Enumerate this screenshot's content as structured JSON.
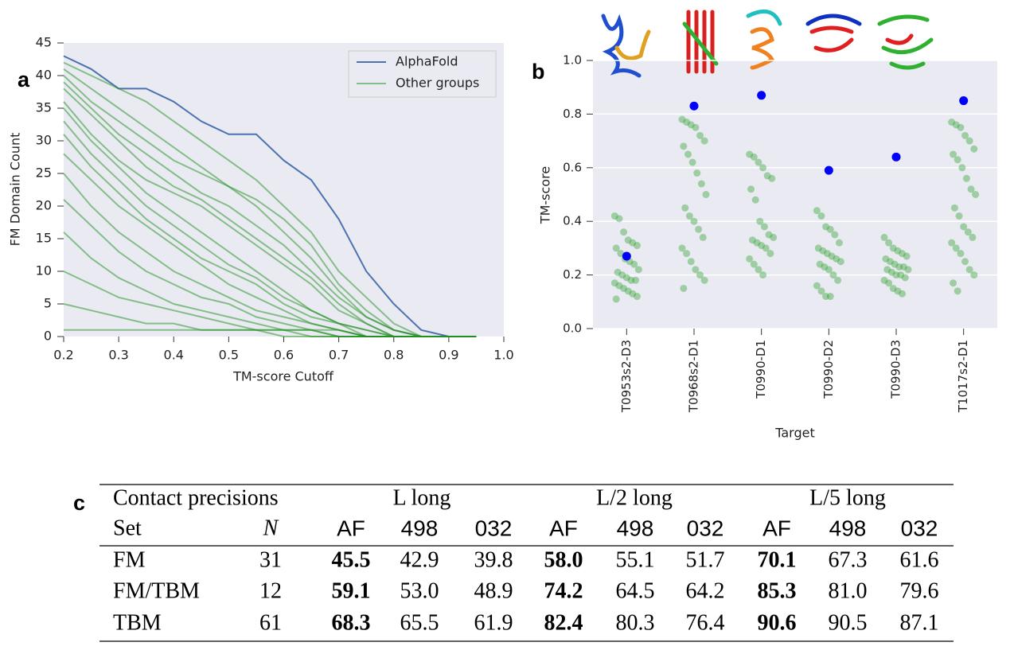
{
  "panels": [
    "a",
    "b",
    "c"
  ],
  "chart_data": [
    {
      "type": "line",
      "xlabel": "TM-score Cutoff",
      "ylabel": "FM Domain Count",
      "x": [
        0.2,
        0.25,
        0.3,
        0.35,
        0.4,
        0.45,
        0.5,
        0.55,
        0.6,
        0.65,
        0.7,
        0.75,
        0.8,
        0.85,
        0.9,
        0.95
      ],
      "xlim": [
        0.2,
        1.0
      ],
      "xticks": [
        0.2,
        0.3,
        0.4,
        0.5,
        0.6,
        0.7,
        0.8,
        0.9,
        {
          "value": 1.0,
          "label": "1.0"
        }
      ],
      "ylim": [
        0,
        45
      ],
      "yticks": [
        0,
        5,
        10,
        15,
        20,
        25,
        30,
        35,
        40,
        45
      ],
      "grid": false,
      "legend": "upper right",
      "series": [
        {
          "name": "AlphaFold",
          "color": "#4c72b0",
          "values": [
            43,
            41,
            38,
            38,
            36,
            33,
            31,
            31,
            27,
            24,
            18,
            10,
            5,
            1,
            0,
            0
          ]
        },
        {
          "name": "Other groups",
          "color": "#1f8f1f",
          "values": [
            [
              42,
              40,
              38,
              36,
              33,
              30,
              27,
              24,
              20,
              16,
              10,
              6,
              2,
              0,
              0,
              0
            ],
            [
              41,
              38,
              35,
              32,
              29,
              26,
              23,
              21,
              18,
              14,
              8,
              4,
              1,
              0,
              0,
              0
            ],
            [
              40,
              36,
              33,
              30,
              27,
              25,
              23,
              20,
              16,
              12,
              7,
              3,
              1,
              0,
              0,
              0
            ],
            [
              39,
              35,
              31,
              28,
              25,
              22,
              20,
              17,
              14,
              10,
              6,
              3,
              1,
              0,
              0,
              0
            ],
            [
              38,
              34,
              30,
              26,
              23,
              21,
              18,
              15,
              12,
              9,
              5,
              2,
              0,
              0,
              0,
              0
            ],
            [
              36,
              31,
              27,
              24,
              22,
              20,
              17,
              14,
              11,
              8,
              4,
              2,
              0,
              0,
              0,
              0
            ],
            [
              35,
              30,
              26,
              22,
              19,
              16,
              13,
              10,
              7,
              4,
              2,
              1,
              0,
              0,
              0,
              0
            ],
            [
              33,
              28,
              24,
              20,
              17,
              14,
              11,
              9,
              6,
              4,
              2,
              1,
              0,
              0,
              0,
              0
            ],
            [
              31,
              26,
              22,
              18,
              15,
              12,
              10,
              8,
              5,
              3,
              2,
              0,
              0,
              0,
              0,
              0
            ],
            [
              28,
              24,
              20,
              17,
              14,
              11,
              8,
              6,
              4,
              2,
              1,
              0,
              0,
              0,
              0,
              0
            ],
            [
              25,
              20,
              16,
              13,
              10,
              8,
              6,
              4,
              3,
              2,
              1,
              0,
              0,
              0,
              0,
              0
            ],
            [
              21,
              17,
              13,
              10,
              8,
              6,
              5,
              3,
              2,
              1,
              0,
              0,
              0,
              0,
              0,
              0
            ],
            [
              16,
              12,
              9,
              7,
              5,
              4,
              3,
              2,
              1,
              1,
              0,
              0,
              0,
              0,
              0,
              0
            ],
            [
              10,
              8,
              6,
              5,
              4,
              3,
              2,
              1,
              1,
              0,
              0,
              0,
              0,
              0,
              0,
              0
            ],
            [
              5,
              4,
              3,
              2,
              2,
              1,
              1,
              1,
              0,
              0,
              0,
              0,
              0,
              0,
              0,
              0
            ],
            [
              1,
              1,
              1,
              1,
              1,
              1,
              1,
              1,
              1,
              1,
              1,
              0,
              0,
              0,
              0,
              0
            ]
          ]
        }
      ]
    },
    {
      "type": "strip",
      "xlabel": "Target",
      "ylabel": "TM-score",
      "categories": [
        "T0953s2-D3",
        "T0968s2-D1",
        "T0990-D1",
        "T0990-D2",
        "T0990-D3",
        "T1017s2-D1"
      ],
      "ylim": [
        0,
        1.0
      ],
      "yticks": [
        {
          "value": 0,
          "label": "0.0"
        },
        0.2,
        0.4,
        0.6,
        0.8,
        {
          "value": 1.0,
          "label": "1.0"
        }
      ],
      "grid": true,
      "points_color": "#2ca02c",
      "points": [
        [
          0.42,
          0.41,
          0.36,
          0.33,
          0.32,
          0.31,
          0.3,
          0.28,
          0.26,
          0.25,
          0.24,
          0.22,
          0.21,
          0.2,
          0.19,
          0.18,
          0.18,
          0.17,
          0.16,
          0.15,
          0.14,
          0.13,
          0.12,
          0.11
        ],
        [
          0.78,
          0.77,
          0.76,
          0.75,
          0.72,
          0.7,
          0.68,
          0.65,
          0.62,
          0.58,
          0.54,
          0.5,
          0.45,
          0.42,
          0.4,
          0.37,
          0.34,
          0.3,
          0.28,
          0.25,
          0.22,
          0.2,
          0.18,
          0.15
        ],
        [
          0.65,
          0.64,
          0.62,
          0.6,
          0.57,
          0.56,
          0.52,
          0.48,
          0.4,
          0.38,
          0.35,
          0.34,
          0.33,
          0.32,
          0.31,
          0.3,
          0.28,
          0.26,
          0.24,
          0.22,
          0.2
        ],
        [
          0.44,
          0.42,
          0.38,
          0.37,
          0.35,
          0.32,
          0.3,
          0.29,
          0.28,
          0.27,
          0.26,
          0.25,
          0.24,
          0.23,
          0.22,
          0.2,
          0.18,
          0.16,
          0.14,
          0.12,
          0.12
        ],
        [
          0.34,
          0.32,
          0.3,
          0.29,
          0.28,
          0.27,
          0.26,
          0.25,
          0.24,
          0.23,
          0.23,
          0.22,
          0.22,
          0.21,
          0.2,
          0.2,
          0.19,
          0.18,
          0.17,
          0.15,
          0.14,
          0.13
        ],
        [
          0.77,
          0.76,
          0.75,
          0.72,
          0.7,
          0.67,
          0.65,
          0.63,
          0.6,
          0.56,
          0.52,
          0.5,
          0.45,
          0.42,
          0.38,
          0.36,
          0.34,
          0.32,
          0.3,
          0.28,
          0.25,
          0.22,
          0.2,
          0.17,
          0.14
        ]
      ],
      "highlight_color": "#0000ff",
      "highlight": [
        0.27,
        0.83,
        0.87,
        0.59,
        0.64,
        0.85
      ]
    }
  ],
  "table": {
    "groups": [
      "Contact precisions",
      "L long",
      "L/2 long",
      "L/5 long"
    ],
    "columns": [
      "Set",
      "N",
      "AF",
      "498",
      "032",
      "AF",
      "498",
      "032",
      "AF",
      "498",
      "032"
    ],
    "rows": [
      [
        "FM",
        "31",
        "45.5",
        "42.9",
        "39.8",
        "58.0",
        "55.1",
        "51.7",
        "70.1",
        "67.3",
        "61.6"
      ],
      [
        "FM/TBM",
        "12",
        "59.1",
        "53.0",
        "48.9",
        "74.2",
        "64.5",
        "64.2",
        "85.3",
        "81.0",
        "79.6"
      ],
      [
        "TBM",
        "61",
        "68.3",
        "65.5",
        "61.9",
        "82.4",
        "80.3",
        "76.4",
        "90.6",
        "90.5",
        "87.1"
      ]
    ]
  }
}
